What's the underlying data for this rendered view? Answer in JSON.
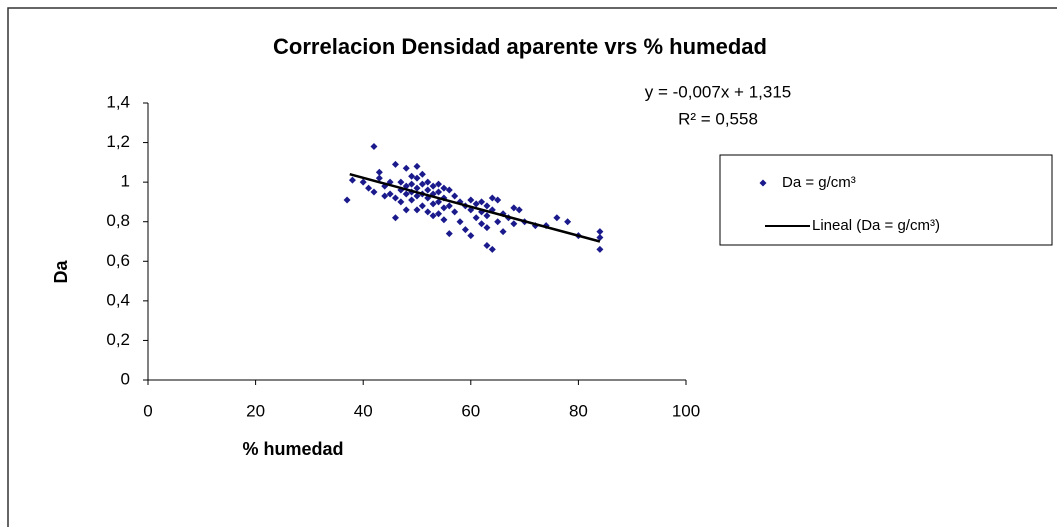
{
  "chart_data": {
    "type": "scatter",
    "title": "Correlacion Densidad aparente vrs % humedad",
    "annotations": [
      "y = -0,007x + 1,315",
      "R² = 0,558"
    ],
    "xlabel": "% humedad",
    "ylabel": "Da",
    "xlim": [
      0,
      100
    ],
    "xticks": [
      0,
      20,
      40,
      60,
      80,
      100
    ],
    "ylim": [
      0,
      1.4
    ],
    "yticks": [
      0,
      {
        "value": 0.2,
        "label": "0,2"
      },
      {
        "value": 0.4,
        "label": "0,4"
      },
      {
        "value": 0.6,
        "label": "0,6"
      },
      {
        "value": 0.8,
        "label": "0,8"
      },
      1,
      {
        "value": 1.2,
        "label": "1,2"
      },
      {
        "value": 1.4,
        "label": "1,4"
      }
    ],
    "grid": false,
    "legend": "right",
    "series": [
      {
        "name": "Da = g/cm³",
        "color": "#1a1a8c",
        "type": "scatter",
        "x": [
          37,
          38,
          40,
          41,
          42,
          42,
          43,
          43,
          44,
          44,
          45,
          45,
          46,
          46,
          46,
          47,
          47,
          47,
          48,
          48,
          48,
          48,
          49,
          49,
          49,
          49,
          50,
          50,
          50,
          50,
          50,
          51,
          51,
          51,
          51,
          52,
          52,
          52,
          52,
          53,
          53,
          53,
          53,
          54,
          54,
          54,
          54,
          55,
          55,
          55,
          55,
          56,
          56,
          56,
          57,
          57,
          58,
          58,
          59,
          59,
          60,
          60,
          60,
          61,
          61,
          62,
          62,
          62,
          63,
          63,
          63,
          63,
          64,
          64,
          64,
          65,
          65,
          66,
          66,
          67,
          68,
          68,
          69,
          70,
          72,
          74,
          76,
          78,
          80,
          84,
          84,
          84
        ],
        "values": [
          0.91,
          1.01,
          1.0,
          0.97,
          1.18,
          0.95,
          1.05,
          1.02,
          0.98,
          0.93,
          1.0,
          0.94,
          1.09,
          0.92,
          0.82,
          1.0,
          0.96,
          0.9,
          1.07,
          0.98,
          0.94,
          0.86,
          1.03,
          0.99,
          0.95,
          0.91,
          1.08,
          1.02,
          0.97,
          0.93,
          0.86,
          1.04,
          0.99,
          0.94,
          0.88,
          1.0,
          0.96,
          0.92,
          0.85,
          0.98,
          0.94,
          0.89,
          0.83,
          0.99,
          0.95,
          0.9,
          0.84,
          0.97,
          0.92,
          0.87,
          0.81,
          0.96,
          0.88,
          0.74,
          0.93,
          0.85,
          0.9,
          0.8,
          0.88,
          0.76,
          0.91,
          0.86,
          0.73,
          0.89,
          0.82,
          0.9,
          0.85,
          0.79,
          0.88,
          0.83,
          0.77,
          0.68,
          0.92,
          0.86,
          0.66,
          0.91,
          0.8,
          0.84,
          0.75,
          0.82,
          0.87,
          0.79,
          0.86,
          0.8,
          0.78,
          0.78,
          0.82,
          0.8,
          0.73,
          0.75,
          0.72,
          0.66
        ]
      },
      {
        "name": "Lineal (Da = g/cm³)",
        "color": "#000000",
        "type": "line",
        "x": [
          37.5,
          84
        ],
        "values": [
          1.04,
          0.7
        ]
      }
    ]
  }
}
